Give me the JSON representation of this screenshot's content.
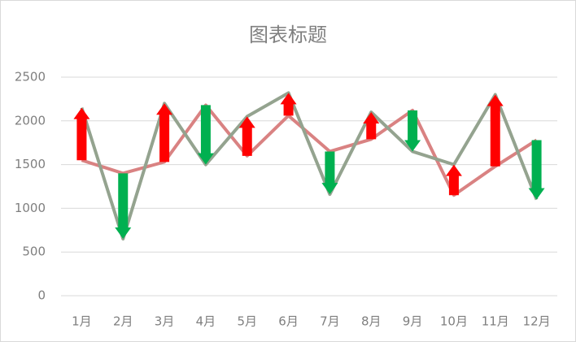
{
  "chart_data": {
    "type": "line",
    "title": "图表标题",
    "categories": [
      "1月",
      "2月",
      "3月",
      "4月",
      "5月",
      "6月",
      "7月",
      "8月",
      "9月",
      "10月",
      "11月",
      "12月"
    ],
    "series": [
      {
        "color": "#d98282",
        "values": [
          1550,
          1400,
          1530,
          2180,
          1600,
          2060,
          1650,
          1790,
          2120,
          1150,
          1480,
          1780
        ]
      },
      {
        "color": "#94a38f",
        "values": [
          2150,
          650,
          2200,
          1500,
          2050,
          2320,
          1160,
          2100,
          1650,
          1500,
          2300,
          1100
        ]
      }
    ],
    "up_color": "#ff0000",
    "down_color": "#00b050",
    "ylim": [
      0,
      2500
    ],
    "yticks": [
      0,
      500,
      1000,
      1500,
      2000,
      2500
    ],
    "grid": true
  }
}
